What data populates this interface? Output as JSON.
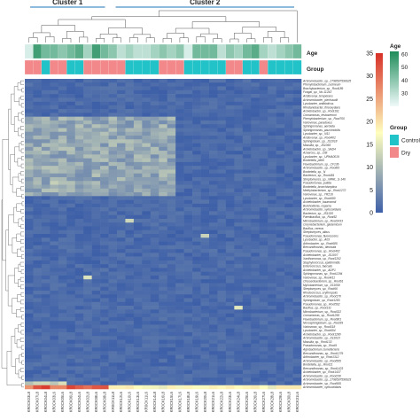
{
  "chart_data": {
    "type": "heatmap",
    "title": "",
    "clusters": [
      "Cluster 1",
      "Cluster 2"
    ],
    "annotation_tracks": {
      "age_label": "Age",
      "group_label": "Group",
      "age_values": [
        25,
        55,
        45,
        45,
        40,
        45,
        50,
        35,
        55,
        45,
        40,
        30,
        35,
        30,
        30,
        35,
        40,
        35,
        40,
        25,
        45,
        45,
        45,
        30,
        40,
        35,
        45,
        50,
        35,
        30,
        35,
        40,
        45
      ],
      "group_values": [
        "Dry",
        "Dry",
        "Control",
        "Dry",
        "Dry",
        "Control",
        "Control",
        "Dry",
        "Dry",
        "Dry",
        "Dry",
        "Dry",
        "Control",
        "Control",
        "Control",
        "Control",
        "Dry",
        "Dry",
        "Dry",
        "Control",
        "Control",
        "Control",
        "Control",
        "Control",
        "Dry",
        "Dry",
        "Control",
        "Control",
        "Dry",
        "Control",
        "Control",
        "Control",
        "Control"
      ]
    },
    "color_scale": {
      "label": "",
      "min": 0,
      "max": 35,
      "ticks": [
        "0",
        "5",
        "10",
        "15",
        "20",
        "25",
        "30",
        "35"
      ],
      "low_color": "#3d5fa8",
      "mid_color": "#ffffbf",
      "high_color": "#d73027"
    },
    "legends": {
      "age_title": "Age",
      "age_ticks": [
        "30",
        "40",
        "50",
        "60"
      ],
      "age_min": 20,
      "age_max": 62,
      "group_title": "Group",
      "group_entries": [
        {
          "name": "Control",
          "color": "#21c3c8"
        },
        {
          "name": "Dry",
          "color": "#f2888a"
        }
      ]
    },
    "rows": [
      "Achromobacter_sp._2798597596625",
      "Phenylobacterium_zucineum",
      "Brachybacterium_sp._Root189",
      "Fungal_sp._No.11243",
      "Acidovorax_temperans",
      "Achromobacter_piechaudii",
      "Lysobacter_antibioticus",
      "Rhodanobacter_thiooxydans",
      "Acinetobacter_sp._Root161",
      "Comamonas_testosteroni",
      "Phenylobacterium_sp._Root700",
      "Variovorax_paradoxus",
      "Sphingomonas_aerolata",
      "Sphingomonas_paucimobilis",
      "Lysobacter_sp._N11",
      "Acidovorax_sp._Root402",
      "Sphingobium_sp._JS1018",
      "Massilia_sp._JS1065",
      "Acinetobacter_sp._SAD4",
      "Azoarcus_sp._CIB",
      "Lysobacter_sp._URHA0019",
      "Bordetella_petrii",
      "Flavobacterium_sp._CF136",
      "Achromobacter_sp._Root83",
      "Bordetella_sp._N",
      "Bacterium_sp._Root481",
      "Streptomyces_sp._NRRL_S-146",
      "Pseudomonas_putida",
      "Bordetella_bronchiseptica",
      "Methylobacterium_sp._Root1272",
      "Variovorax_sp._YR216",
      "Lysobacter_sp._Root690",
      "Acinetobacter_baumannii",
      "Burkholderia_cepacia",
      "Achromobacter_xylosoxidans",
      "Bacterium_sp._JS1020",
      "Paenibacillus_sp._Root52",
      "Microbacterium_sp._Root1433",
      "Corynebacterium_glutamicum",
      "Bacillus_cereus",
      "Streptomyces_albus",
      "Pseudomonas_fluorescens",
      "Lysobacter_sp._A03",
      "Arthrobacter_sp._Root685",
      "Brevundimonas_diminuta",
      "Pseudomonas_sp._Root402",
      "Acinetobacter_sp._JS1007",
      "Xanthomonas_sp._Root1202",
      "Staphylococcus_epidermidis",
      "Enterococcus_faecalis",
      "Acinetobacter_sp._ADP1",
      "Sphingomonas_sp._Root1294",
      "Variovorax_sp._Root411",
      "Chryseobacterium_sp._Root61",
      "Mycobacterium_sp._JS1059",
      "Streptomyces_sp._Root66",
      "Rhodococcus_erythropolis",
      "Achromobacter_sp._Root170",
      "Sphingobium_sp._Root1283",
      "Pseudomonas_sp._Root562",
      "Bacillus_sp._Root131",
      "Microbacterium_sp._Root322",
      "Comamonas_sp._Root1295",
      "Flavobacterium_sp._Root901",
      "Novosphingobium_sp._Root39",
      "Variovorax_sp._Root318",
      "Lysobacter_sp._Root604",
      "Acinetobacter_sp._Root1280",
      "Achromobacter_sp._JS1010",
      "Massilia_sp._Root133",
      "Pseudomonas_sp._Root9",
      "Agrobacterium_tumefaciens",
      "Brevundimonas_sp._Root1279",
      "Arthrobacter_sp._Root1312",
      "Achromobacter_sp._Root565",
      "Bordetella_sp._Root21",
      "Brevundimonas_sp._Root1423",
      "Acinetobacter_sp._Root1437",
      "Achromobacter_sp._Root230",
      "Achromobacter_sp._2798597596623",
      "Achromobacter_sp._Root565",
      "Achromobacter_xylosoxidans"
    ],
    "samples": [
      "KR0CK03L8",
      "KR0CK07L8",
      "KR0CK04L8",
      "KR0CK03L6",
      "KR0CK05L6",
      "KR0CK06L8",
      "KR0CK04L6",
      "KR0CK02L8",
      "KR0CK08L6",
      "KR0CK08L8",
      "KR0CK11L8",
      "KR0CK12L6",
      "KR0CK10L6",
      "KR0CK13L6",
      "KR0CK11L6",
      "KR0CK14L8",
      "KR0CK16L8",
      "KR0CK15L6",
      "KR0CK17L6",
      "KR0CK18L8",
      "KR0CK19L6",
      "KR0CK20L8",
      "KR0CK21L6",
      "KR0CK22L8",
      "KR0CK23L6",
      "KR0CK24L8",
      "KR0CK25L6",
      "KR0CK26L8",
      "KR0CK27L6",
      "KR0CK28L8",
      "KR0CK29L6",
      "KR0CK30L8",
      "KR0CK31L6"
    ],
    "cluster_split_index": 10,
    "values": [],
    "value_rule": "Near-zero abundance (0-5) in almost all cells; rows 10-30 moderate (5-12) in samples 0-17; last row high (25-35) in samples 0-9 and mid (15-20) in samples 10-32; a few isolated highlights ~12-15."
  }
}
